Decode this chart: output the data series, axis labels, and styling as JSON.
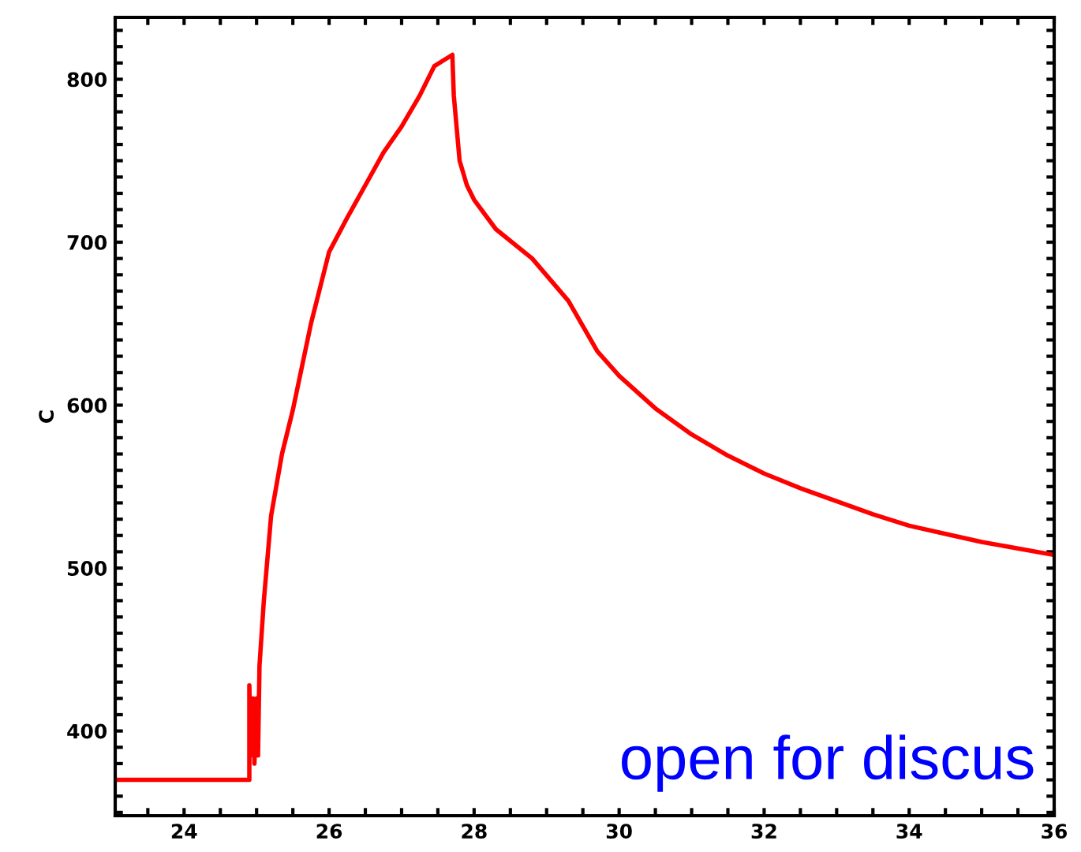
{
  "chart_data": {
    "type": "line",
    "ylabel": "C",
    "x": [
      23.05,
      24.9,
      24.9,
      24.92,
      24.95,
      24.97,
      25.0,
      25.02,
      25.04,
      25.1,
      25.2,
      25.35,
      25.5,
      25.75,
      26.0,
      26.25,
      26.5,
      26.75,
      27.0,
      27.25,
      27.45,
      27.7,
      27.72,
      27.8,
      27.9,
      28.0,
      28.3,
      28.8,
      29.3,
      29.7,
      30.0,
      30.5,
      31.0,
      31.5,
      32.0,
      32.5,
      33.0,
      33.5,
      34.0,
      34.5,
      35.0,
      35.5,
      36.0
    ],
    "series": [
      {
        "color": "#ff0000",
        "line_style": "solid",
        "marker": "none",
        "values": [
          370,
          370,
          428,
          385,
          420,
          380,
          420,
          385,
          440,
          480,
          532,
          570,
          597,
          650,
          694,
          715,
          735,
          755,
          771,
          790,
          808,
          815,
          790,
          750,
          735,
          726,
          708,
          690,
          664,
          633,
          618,
          598,
          582,
          569,
          558,
          549,
          541,
          533,
          526,
          521,
          516,
          512,
          508
        ]
      }
    ],
    "xlim": [
      23.05,
      36
    ],
    "ylim": [
      348,
      838
    ],
    "xticks": [
      {
        "value": 23.5,
        "label": null
      },
      24,
      {
        "value": 24.5,
        "label": null
      },
      {
        "value": 25,
        "label": null
      },
      {
        "value": 25.5,
        "label": null
      },
      26,
      {
        "value": 26.5,
        "label": null
      },
      {
        "value": 27,
        "label": null
      },
      {
        "value": 27.5,
        "label": null
      },
      28,
      {
        "value": 28.5,
        "label": null
      },
      {
        "value": 29,
        "label": null
      },
      {
        "value": 29.5,
        "label": null
      },
      30,
      {
        "value": 30.5,
        "label": null
      },
      {
        "value": 31,
        "label": null
      },
      {
        "value": 31.5,
        "label": null
      },
      32,
      {
        "value": 32.5,
        "label": null
      },
      {
        "value": 33,
        "label": null
      },
      {
        "value": 33.5,
        "label": null
      },
      34,
      {
        "value": 34.5,
        "label": null
      },
      {
        "value": 35,
        "label": null
      },
      {
        "value": 35.5,
        "label": null
      },
      36
    ],
    "yticks": [
      {
        "value": 350,
        "label": null
      },
      {
        "value": 360,
        "label": null
      },
      {
        "value": 370,
        "label": null
      },
      {
        "value": 380,
        "label": null
      },
      {
        "value": 390,
        "label": null
      },
      400,
      {
        "value": 410,
        "label": null
      },
      {
        "value": 420,
        "label": null
      },
      {
        "value": 430,
        "label": null
      },
      {
        "value": 440,
        "label": null
      },
      {
        "value": 450,
        "label": null
      },
      {
        "value": 460,
        "label": null
      },
      {
        "value": 470,
        "label": null
      },
      {
        "value": 480,
        "label": null
      },
      {
        "value": 490,
        "label": null
      },
      500,
      {
        "value": 510,
        "label": null
      },
      {
        "value": 520,
        "label": null
      },
      {
        "value": 530,
        "label": null
      },
      {
        "value": 540,
        "label": null
      },
      {
        "value": 550,
        "label": null
      },
      {
        "value": 560,
        "label": null
      },
      {
        "value": 570,
        "label": null
      },
      {
        "value": 580,
        "label": null
      },
      {
        "value": 590,
        "label": null
      },
      600,
      {
        "value": 610,
        "label": null
      },
      {
        "value": 620,
        "label": null
      },
      {
        "value": 630,
        "label": null
      },
      {
        "value": 640,
        "label": null
      },
      {
        "value": 650,
        "label": null
      },
      {
        "value": 660,
        "label": null
      },
      {
        "value": 670,
        "label": null
      },
      {
        "value": 680,
        "label": null
      },
      {
        "value": 690,
        "label": null
      },
      700,
      {
        "value": 710,
        "label": null
      },
      {
        "value": 720,
        "label": null
      },
      {
        "value": 730,
        "label": null
      },
      {
        "value": 740,
        "label": null
      },
      {
        "value": 750,
        "label": null
      },
      {
        "value": 760,
        "label": null
      },
      {
        "value": 770,
        "label": null
      },
      {
        "value": 780,
        "label": null
      },
      {
        "value": 790,
        "label": null
      },
      800,
      {
        "value": 810,
        "label": null
      },
      {
        "value": 820,
        "label": null
      },
      {
        "value": 830,
        "label": null
      }
    ],
    "grid": false,
    "legend": false,
    "annotations": [
      "open for discus"
    ]
  }
}
